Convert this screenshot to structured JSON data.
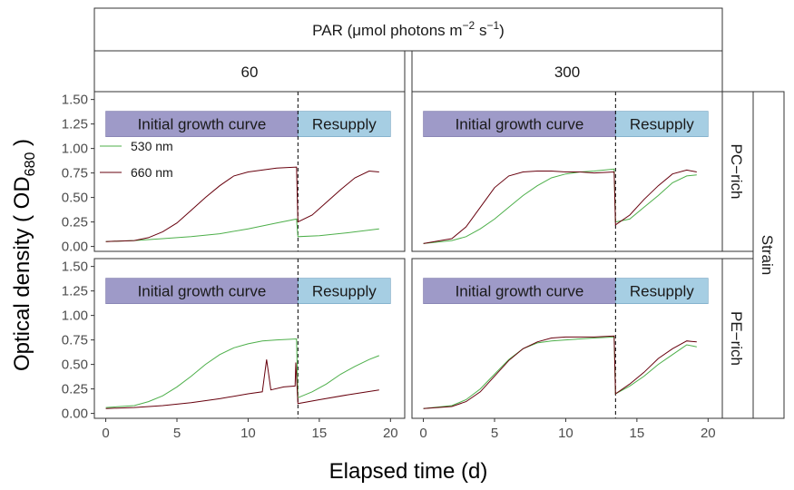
{
  "chart_data": {
    "type": "line",
    "title": "",
    "xlabel": "Elapsed time (d)",
    "ylabel_main": "Optical density ( OD",
    "ylabel_sub": "680",
    "ylabel_close": " )",
    "xlim": [
      -0.8,
      21
    ],
    "ylim": [
      -0.05,
      1.58
    ],
    "x_ticks": [
      "0",
      "5",
      "10",
      "15",
      "20"
    ],
    "y_ticks": [
      "0.00",
      "0.25",
      "0.50",
      "0.75",
      "1.00",
      "1.25",
      "1.50"
    ],
    "top_strip": {
      "text": "PAR (μmol photons m",
      "sup1": "−2",
      "mid": " s",
      "sup2": "−1",
      "close": ")"
    },
    "columns": [
      "60",
      "300"
    ],
    "rows": [
      "PC−rich",
      "PE−rich"
    ],
    "right_strip": "Strain",
    "grid": false,
    "legend": {
      "position": "top-left of first panel",
      "entries": [
        "530 nm",
        "660 nm"
      ]
    },
    "resupply_day": 13.5,
    "bands": {
      "initial_label": "Initial growth curve",
      "resupply_label": "Resupply",
      "initial_color": "#9e9ac8",
      "resupply_color": "#a6cee3"
    },
    "series_colors": {
      "530 nm": "#4daf4a",
      "660 nm": "#67000d"
    },
    "panels": [
      {
        "row": "PC−rich",
        "col": "60",
        "series": [
          {
            "name": "530 nm",
            "points": [
              [
                0,
                0.05
              ],
              [
                2,
                0.06
              ],
              [
                4,
                0.08
              ],
              [
                6,
                0.1
              ],
              [
                8,
                0.13
              ],
              [
                10,
                0.18
              ],
              [
                12,
                0.24
              ],
              [
                13.4,
                0.28
              ],
              [
                13.5,
                0.1
              ],
              [
                15,
                0.11
              ],
              [
                17,
                0.14
              ],
              [
                19.2,
                0.18
              ]
            ]
          },
          {
            "name": "660 nm",
            "points": [
              [
                0,
                0.05
              ],
              [
                2,
                0.06
              ],
              [
                3,
                0.09
              ],
              [
                4,
                0.15
              ],
              [
                5,
                0.24
              ],
              [
                6,
                0.37
              ],
              [
                7,
                0.5
              ],
              [
                8,
                0.62
              ],
              [
                9,
                0.72
              ],
              [
                10,
                0.76
              ],
              [
                11,
                0.78
              ],
              [
                12,
                0.8
              ],
              [
                13.4,
                0.81
              ],
              [
                13.5,
                0.25
              ],
              [
                14.5,
                0.32
              ],
              [
                15.5,
                0.45
              ],
              [
                16.5,
                0.58
              ],
              [
                17.5,
                0.7
              ],
              [
                18.5,
                0.77
              ],
              [
                19.2,
                0.76
              ]
            ]
          }
        ]
      },
      {
        "row": "PC−rich",
        "col": "300",
        "series": [
          {
            "name": "530 nm",
            "points": [
              [
                0,
                0.03
              ],
              [
                2,
                0.06
              ],
              [
                3,
                0.1
              ],
              [
                4,
                0.18
              ],
              [
                5,
                0.28
              ],
              [
                6,
                0.4
              ],
              [
                7,
                0.52
              ],
              [
                8,
                0.62
              ],
              [
                9,
                0.7
              ],
              [
                10,
                0.74
              ],
              [
                11,
                0.76
              ],
              [
                12,
                0.77
              ],
              [
                13.4,
                0.79
              ],
              [
                13.5,
                0.25
              ],
              [
                14.5,
                0.28
              ],
              [
                15.5,
                0.4
              ],
              [
                16.5,
                0.52
              ],
              [
                17.5,
                0.65
              ],
              [
                18.5,
                0.72
              ],
              [
                19.2,
                0.73
              ]
            ]
          },
          {
            "name": "660 nm",
            "points": [
              [
                0,
                0.03
              ],
              [
                2,
                0.08
              ],
              [
                3,
                0.2
              ],
              [
                4,
                0.4
              ],
              [
                5,
                0.6
              ],
              [
                6,
                0.72
              ],
              [
                7,
                0.76
              ],
              [
                8,
                0.77
              ],
              [
                9,
                0.77
              ],
              [
                10,
                0.76
              ],
              [
                11,
                0.76
              ],
              [
                12,
                0.75
              ],
              [
                13.4,
                0.76
              ],
              [
                13.5,
                0.22
              ],
              [
                14.5,
                0.32
              ],
              [
                15.5,
                0.48
              ],
              [
                16.5,
                0.62
              ],
              [
                17.5,
                0.74
              ],
              [
                18.5,
                0.78
              ],
              [
                19.2,
                0.76
              ]
            ]
          }
        ]
      },
      {
        "row": "PE−rich",
        "col": "60",
        "series": [
          {
            "name": "530 nm",
            "points": [
              [
                0,
                0.06
              ],
              [
                2,
                0.08
              ],
              [
                3,
                0.12
              ],
              [
                4,
                0.18
              ],
              [
                5,
                0.27
              ],
              [
                6,
                0.38
              ],
              [
                7,
                0.5
              ],
              [
                8,
                0.6
              ],
              [
                9,
                0.67
              ],
              [
                10,
                0.71
              ],
              [
                11,
                0.74
              ],
              [
                12,
                0.75
              ],
              [
                13.4,
                0.76
              ],
              [
                13.5,
                0.16
              ],
              [
                14.5,
                0.22
              ],
              [
                15.5,
                0.3
              ],
              [
                16.5,
                0.4
              ],
              [
                17.5,
                0.48
              ],
              [
                18.5,
                0.55
              ],
              [
                19.2,
                0.59
              ]
            ]
          },
          {
            "name": "660 nm",
            "points": [
              [
                0,
                0.05
              ],
              [
                2,
                0.06
              ],
              [
                4,
                0.08
              ],
              [
                6,
                0.11
              ],
              [
                8,
                0.15
              ],
              [
                10,
                0.2
              ],
              [
                11,
                0.22
              ],
              [
                11.3,
                0.55
              ],
              [
                11.6,
                0.24
              ],
              [
                12.5,
                0.27
              ],
              [
                13.3,
                0.28
              ],
              [
                13.35,
                0.52
              ],
              [
                13.5,
                0.1
              ],
              [
                15,
                0.14
              ],
              [
                17,
                0.19
              ],
              [
                19.2,
                0.24
              ]
            ]
          }
        ]
      },
      {
        "row": "PE−rich",
        "col": "300",
        "series": [
          {
            "name": "530 nm",
            "points": [
              [
                0,
                0.05
              ],
              [
                2,
                0.08
              ],
              [
                3,
                0.14
              ],
              [
                4,
                0.25
              ],
              [
                5,
                0.4
              ],
              [
                6,
                0.55
              ],
              [
                7,
                0.66
              ],
              [
                8,
                0.72
              ],
              [
                9,
                0.74
              ],
              [
                10,
                0.75
              ],
              [
                11,
                0.76
              ],
              [
                12,
                0.77
              ],
              [
                13.4,
                0.78
              ],
              [
                13.5,
                0.2
              ],
              [
                14.5,
                0.28
              ],
              [
                15.5,
                0.38
              ],
              [
                16.5,
                0.5
              ],
              [
                17.5,
                0.6
              ],
              [
                18.5,
                0.7
              ],
              [
                19.2,
                0.68
              ]
            ]
          },
          {
            "name": "660 nm",
            "points": [
              [
                0,
                0.05
              ],
              [
                2,
                0.07
              ],
              [
                3,
                0.12
              ],
              [
                4,
                0.22
              ],
              [
                5,
                0.38
              ],
              [
                6,
                0.54
              ],
              [
                7,
                0.66
              ],
              [
                8,
                0.73
              ],
              [
                9,
                0.77
              ],
              [
                10,
                0.78
              ],
              [
                11,
                0.78
              ],
              [
                12,
                0.78
              ],
              [
                13.4,
                0.79
              ],
              [
                13.5,
                0.2
              ],
              [
                14.5,
                0.3
              ],
              [
                15.5,
                0.42
              ],
              [
                16.5,
                0.56
              ],
              [
                17.5,
                0.66
              ],
              [
                18.5,
                0.74
              ],
              [
                19.2,
                0.73
              ]
            ]
          }
        ]
      }
    ]
  }
}
